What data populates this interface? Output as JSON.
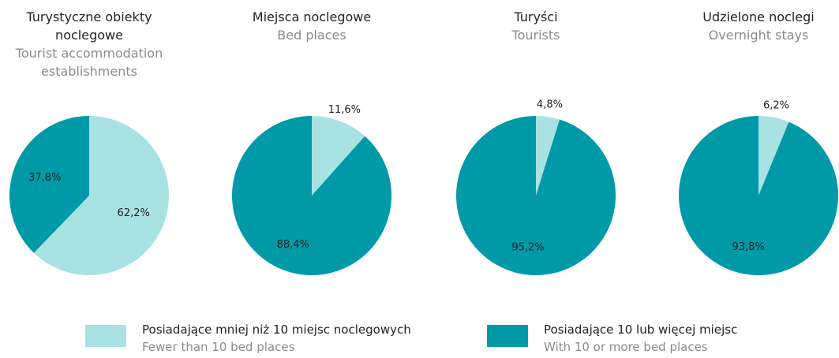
{
  "chart_data": [
    {
      "type": "pie",
      "title": "Turystyczne obiekty noclegowe",
      "subtitle": "Tourist accommodation establishments",
      "values": [
        62.2,
        37.8
      ],
      "value_labels": [
        "62,2%",
        "37,8%"
      ],
      "colors": [
        "#a8e2e3",
        "#0099a8"
      ]
    },
    {
      "type": "pie",
      "title": "Miejsca noclegowe",
      "subtitle": "Bed places",
      "values": [
        11.6,
        88.4
      ],
      "value_labels": [
        "11,6%",
        "88,4%"
      ],
      "colors": [
        "#a8e2e3",
        "#0099a8"
      ]
    },
    {
      "type": "pie",
      "title": "Turyści",
      "subtitle": "Tourists",
      "values": [
        4.8,
        95.2
      ],
      "value_labels": [
        "4,8%",
        "95,2%"
      ],
      "colors": [
        "#a8e2e3",
        "#0099a8"
      ]
    },
    {
      "type": "pie",
      "title": "Udzielone noclegi",
      "subtitle": "Overnight stays",
      "values": [
        6.2,
        93.8
      ],
      "value_labels": [
        "6,2%",
        "93,8%"
      ],
      "colors": [
        "#a8e2e3",
        "#0099a8"
      ]
    }
  ],
  "legend": [
    {
      "name": "Posiadające mniej niż 10 miejsc noclegowych",
      "subtitle": "Fewer than 10 bed places",
      "color": "#a8e2e3"
    },
    {
      "name": "Posiadające 10 lub więcej miejsc",
      "subtitle": "With 10 or more bed places",
      "color": "#0099a8"
    }
  ]
}
